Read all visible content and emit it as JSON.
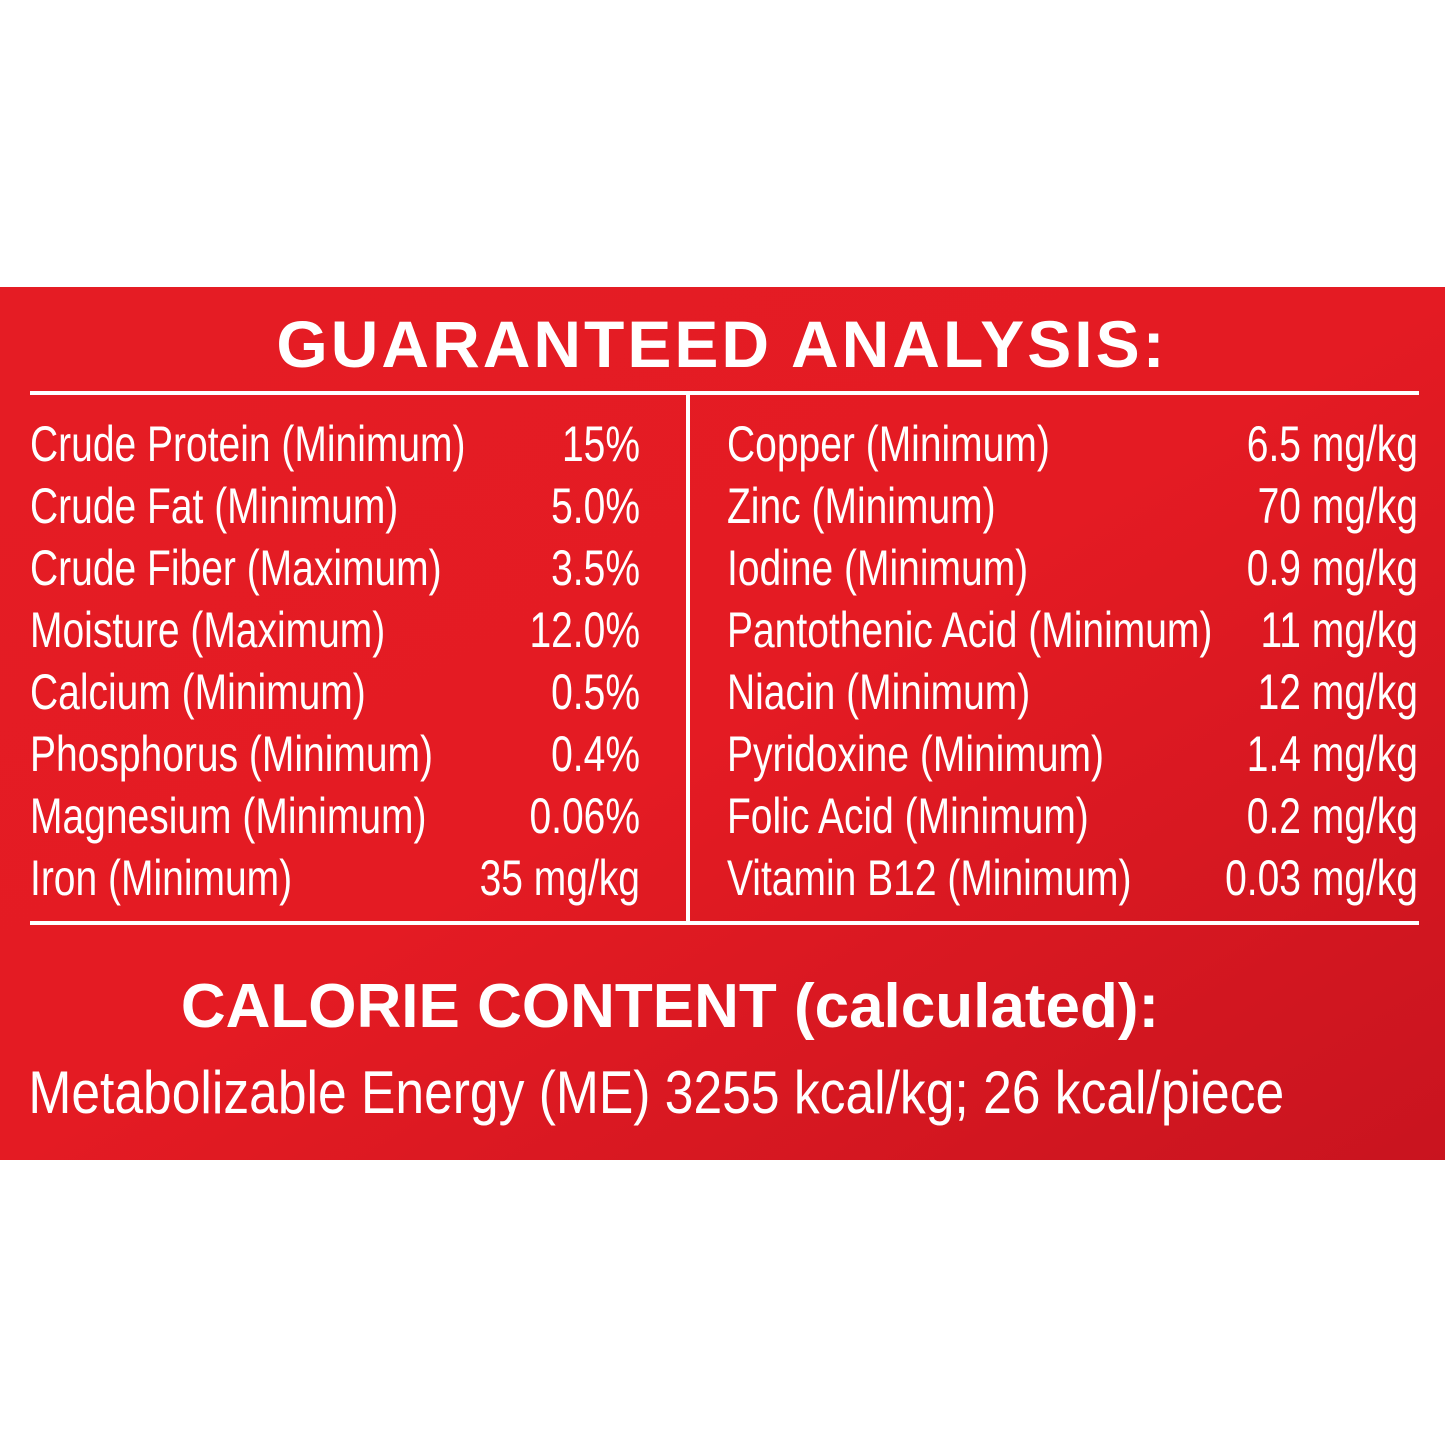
{
  "title": "GUARANTEED ANALYSIS:",
  "left_rows": [
    [
      "Crude Protein (Minimum)",
      "15%"
    ],
    [
      "Crude Fat (Minimum)",
      "5.0%"
    ],
    [
      "Crude Fiber (Maximum)",
      "3.5%"
    ],
    [
      "Moisture (Maximum)",
      "12.0%"
    ],
    [
      "Calcium (Minimum)",
      "0.5%"
    ],
    [
      "Phosphorus (Minimum)",
      "0.4%"
    ],
    [
      "Magnesium (Minimum)",
      "0.06%"
    ],
    [
      "Iron (Minimum)",
      "35 mg/kg"
    ]
  ],
  "right_rows": [
    [
      "Copper (Minimum)",
      "6.5 mg/kg"
    ],
    [
      "Zinc (Minimum)",
      "70 mg/kg"
    ],
    [
      "Iodine (Minimum)",
      "0.9 mg/kg"
    ],
    [
      "Pantothenic Acid (Minimum)",
      "11 mg/kg"
    ],
    [
      "Niacin (Minimum)",
      "12 mg/kg"
    ],
    [
      "Pyridoxine (Minimum)",
      "1.4 mg/kg"
    ],
    [
      "Folic Acid (Minimum)",
      "0.2 mg/kg"
    ],
    [
      "Vitamin B12 (Minimum)",
      "0.03 mg/kg"
    ]
  ],
  "calorie_title": "CALORIE CONTENT (calculated):",
  "calorie_text": "Metabolizable Energy (ME) 3255 kcal/kg; 26 kcal/piece"
}
